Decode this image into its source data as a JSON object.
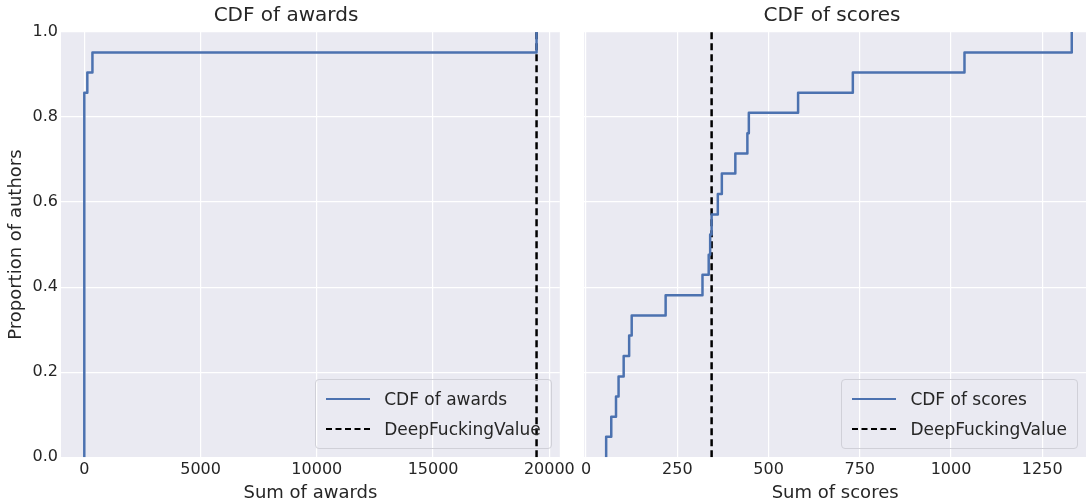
{
  "chart_data": [
    {
      "type": "step",
      "title": "CDF of awards",
      "xlabel": "Sum of awards",
      "ylabel": "Proportion of authors",
      "series": [
        {
          "name": "CDF of awards",
          "color": "#4c72b0",
          "x": [
            0,
            0,
            130,
            350,
            19450
          ],
          "values": [
            0,
            0.857,
            0.905,
            0.952,
            1.0
          ]
        }
      ],
      "ref_lines": [
        {
          "axis": "x",
          "value": 19450,
          "label": "DeepFuckingValue",
          "color": "#000000",
          "line_style": "dashed"
        }
      ],
      "xlim": [
        -1000,
        20450
      ],
      "xticks": [
        0,
        5000,
        10000,
        15000,
        20000
      ],
      "ylim": [
        0,
        1
      ],
      "yticks": [
        {
          "value": 0,
          "label": "0.0"
        },
        0.2,
        0.4,
        0.6,
        0.8,
        {
          "value": 1,
          "label": "1.0"
        }
      ],
      "grid": true,
      "legend": "bottom right"
    },
    {
      "type": "step",
      "title": "CDF of scores",
      "xlabel": "Sum of scores",
      "series": [
        {
          "name": "CDF of scores",
          "color": "#4c72b0",
          "x": [
            55,
            55,
            69,
            82,
            89,
            103,
            118,
            125,
            218,
            319,
            336,
            340,
            344,
            361,
            372,
            409,
            442,
            446,
            581,
            731,
            1037,
            1331
          ],
          "values": [
            0,
            0.048,
            0.095,
            0.143,
            0.19,
            0.238,
            0.286,
            0.333,
            0.381,
            0.429,
            0.476,
            0.524,
            0.571,
            0.619,
            0.667,
            0.714,
            0.762,
            0.81,
            0.857,
            0.905,
            0.952,
            1.0
          ]
        }
      ],
      "ref_lines": [
        {
          "axis": "x",
          "value": 344,
          "label": "DeepFuckingValue",
          "color": "#000000",
          "line_style": "dashed"
        }
      ],
      "xlim": [
        -5,
        1370
      ],
      "xticks": [
        0,
        250,
        500,
        750,
        1000,
        1250
      ],
      "ylim": [
        0,
        1
      ],
      "yticks": [
        0,
        0.2,
        0.4,
        0.6,
        0.8,
        1
      ],
      "grid": true,
      "legend": "bottom right",
      "tick_labels": "x"
    }
  ]
}
